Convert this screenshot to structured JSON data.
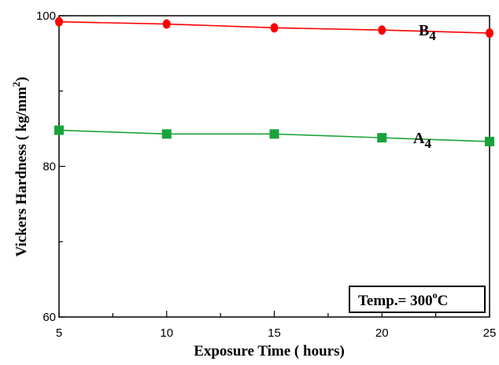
{
  "chart_data": {
    "type": "line",
    "xlabel": "Exposure Time ( hours)",
    "ylabel_main": "Vickers Hardness ( kg/mm",
    "ylabel_sup": "2",
    "ylabel_end": ")",
    "xlim": [
      5,
      25
    ],
    "ylim": [
      60,
      100
    ],
    "x_major_ticks": [
      5,
      10,
      15,
      20,
      25
    ],
    "x_tick_labels": [
      "5",
      "10",
      "15",
      "20",
      "25"
    ],
    "x_minor_ticks": [
      7.5,
      12.5,
      17.5,
      22.5
    ],
    "y_major_ticks": [
      60,
      80,
      100
    ],
    "y_tick_labels": [
      "60",
      "80",
      "100"
    ],
    "y_minor_ticks": [
      70,
      90
    ],
    "grid": false,
    "series": [
      {
        "name": "B",
        "name_sub": "4",
        "color": "#ff0000",
        "marker": "circle",
        "x": [
          5,
          10,
          15,
          20,
          25
        ],
        "y": [
          99.2,
          98.9,
          98.4,
          98.1,
          97.7
        ]
      },
      {
        "name": "A",
        "name_sub": "4",
        "color": "#1aa33a",
        "marker": "square",
        "x": [
          5,
          10,
          15,
          20,
          25
        ],
        "y": [
          84.8,
          84.3,
          84.3,
          83.8,
          83.3
        ]
      }
    ],
    "annotation": {
      "text": "Temp.= 300",
      "sup": "o",
      "unit": "C",
      "placement": "bottom-right"
    }
  }
}
